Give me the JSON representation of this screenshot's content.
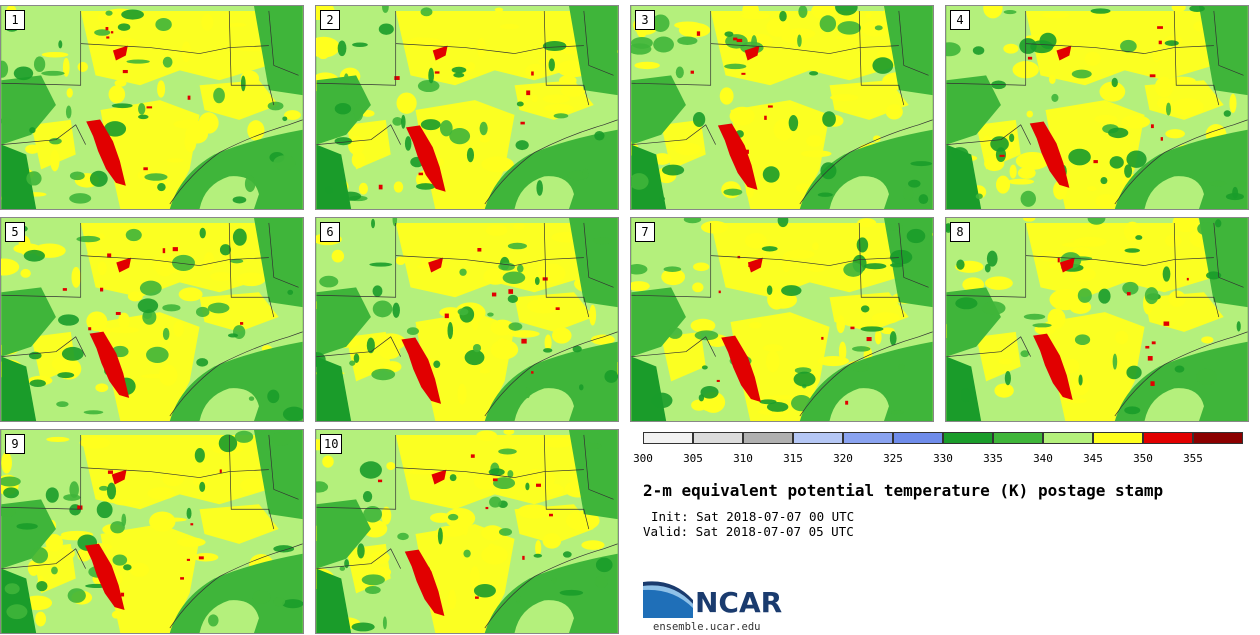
{
  "panels": [
    {
      "label": "1"
    },
    {
      "label": "2"
    },
    {
      "label": "3"
    },
    {
      "label": "4"
    },
    {
      "label": "5"
    },
    {
      "label": "6"
    },
    {
      "label": "7"
    },
    {
      "label": "8"
    },
    {
      "label": "9"
    },
    {
      "label": "10"
    }
  ],
  "colorbar": {
    "ticks": [
      "300",
      "305",
      "310",
      "315",
      "320",
      "325",
      "330",
      "335",
      "340",
      "345",
      "350",
      "355"
    ],
    "colors": [
      "#f2f2f2",
      "#dcdcdc",
      "#b0b0b0",
      "#b5c7f5",
      "#8aa3f0",
      "#6f8cea",
      "#1a9c2a",
      "#3fb53a",
      "#b4f07c",
      "#ffff1e",
      "#e10000",
      "#8b0000"
    ]
  },
  "title": "2-m equivalent potential temperature (K) postage stamp",
  "init": "Init: Sat 2018-07-07 00 UTC",
  "valid": "Valid: Sat 2018-07-07 05 UTC",
  "logo": {
    "text": "NCAR"
  },
  "footer": "ensemble.ucar.edu",
  "map_colors": {
    "land_light": "#b4f07c",
    "land_green": "#3fb53a",
    "land_dark": "#1a9c2a",
    "warm": "#ffff1e",
    "hot": "#e10000"
  }
}
